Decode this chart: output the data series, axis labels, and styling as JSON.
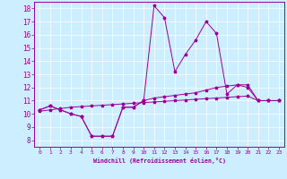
{
  "xlabel": "Windchill (Refroidissement éolien,°C)",
  "bg_color": "#cceeff",
  "line_color": "#990099",
  "xlim": [
    -0.5,
    23.5
  ],
  "ylim": [
    7.5,
    18.5
  ],
  "xticks": [
    0,
    1,
    2,
    3,
    4,
    5,
    6,
    7,
    8,
    9,
    10,
    11,
    12,
    13,
    14,
    15,
    16,
    17,
    18,
    19,
    20,
    21,
    22,
    23
  ],
  "yticks": [
    8,
    9,
    10,
    11,
    12,
    13,
    14,
    15,
    16,
    17,
    18
  ],
  "series1_x": [
    0,
    1,
    2,
    3,
    4,
    5,
    6,
    7,
    8,
    9,
    10,
    11,
    12,
    13,
    14,
    15,
    16,
    17,
    18,
    19,
    20,
    21,
    22,
    23
  ],
  "series1_y": [
    10.3,
    10.6,
    10.3,
    10.0,
    9.8,
    8.3,
    8.3,
    8.3,
    10.5,
    10.5,
    11.0,
    18.2,
    17.3,
    13.2,
    14.5,
    15.6,
    17.0,
    16.1,
    11.5,
    12.2,
    12.0,
    11.0,
    11.0,
    11.0
  ],
  "series2_x": [
    0,
    1,
    2,
    3,
    4,
    5,
    6,
    7,
    8,
    9,
    10,
    11,
    12,
    13,
    14,
    15,
    16,
    17,
    18,
    19,
    20,
    21,
    22,
    23
  ],
  "series2_y": [
    10.3,
    10.6,
    10.3,
    10.0,
    9.8,
    8.3,
    8.3,
    8.3,
    10.5,
    10.5,
    11.0,
    11.2,
    11.3,
    11.4,
    11.5,
    11.6,
    11.8,
    12.0,
    12.1,
    12.2,
    12.2,
    11.0,
    11.0,
    11.0
  ],
  "series3_x": [
    0,
    1,
    2,
    3,
    4,
    5,
    6,
    7,
    8,
    9,
    10,
    11,
    12,
    13,
    14,
    15,
    16,
    17,
    18,
    19,
    20,
    21,
    22,
    23
  ],
  "series3_y": [
    10.2,
    10.3,
    10.4,
    10.5,
    10.55,
    10.6,
    10.65,
    10.7,
    10.75,
    10.8,
    10.85,
    10.9,
    10.95,
    11.0,
    11.05,
    11.1,
    11.15,
    11.2,
    11.25,
    11.3,
    11.35,
    11.0,
    11.0,
    11.0
  ]
}
